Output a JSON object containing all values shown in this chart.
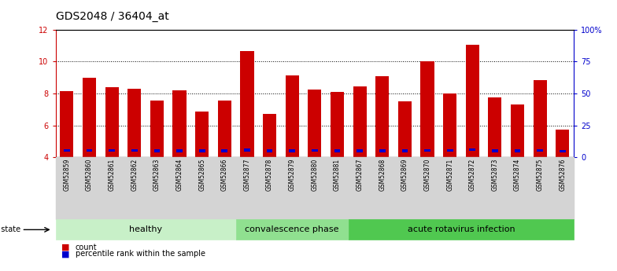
{
  "title": "GDS2048 / 36404_at",
  "samples": [
    "GSM52859",
    "GSM52860",
    "GSM52861",
    "GSM52862",
    "GSM52863",
    "GSM52864",
    "GSM52865",
    "GSM52866",
    "GSM52877",
    "GSM52878",
    "GSM52879",
    "GSM52880",
    "GSM52881",
    "GSM52867",
    "GSM52868",
    "GSM52869",
    "GSM52870",
    "GSM52871",
    "GSM52872",
    "GSM52873",
    "GSM52874",
    "GSM52875",
    "GSM52876"
  ],
  "counts": [
    8.15,
    9.0,
    8.4,
    8.3,
    7.55,
    8.2,
    6.85,
    7.55,
    10.65,
    6.7,
    9.15,
    8.25,
    8.1,
    8.45,
    9.1,
    7.5,
    10.0,
    8.0,
    11.05,
    7.75,
    7.3,
    8.85,
    5.75
  ],
  "percentiles": [
    5.35,
    5.35,
    5.35,
    5.35,
    5.1,
    5.1,
    5.1,
    5.1,
    5.5,
    4.9,
    5.1,
    5.35,
    5.1,
    5.1,
    5.0,
    5.1,
    5.35,
    5.35,
    5.85,
    5.1,
    4.9,
    5.35,
    4.55
  ],
  "groups": [
    {
      "label": "healthy",
      "start": 0,
      "end": 8,
      "color": "#c8f0c8"
    },
    {
      "label": "convalescence phase",
      "start": 8,
      "end": 13,
      "color": "#90e090"
    },
    {
      "label": "acute rotavirus infection",
      "start": 13,
      "end": 23,
      "color": "#50c850"
    }
  ],
  "ylim_left": [
    4,
    12
  ],
  "ylim_right": [
    0,
    100
  ],
  "yticks_left": [
    4,
    6,
    8,
    10,
    12
  ],
  "yticks_right": [
    0,
    25,
    50,
    75,
    100
  ],
  "bar_color": "#cc0000",
  "percentile_color": "#0000cc",
  "bar_width": 0.6,
  "tick_label_fontsize": 5.5,
  "title_fontsize": 10,
  "group_label_fontsize": 8,
  "legend_fontsize": 7,
  "disease_state_fontsize": 7,
  "axis_color_left": "#cc0000",
  "axis_color_right": "#0000cc",
  "grid_yticks": [
    6,
    8,
    10
  ]
}
